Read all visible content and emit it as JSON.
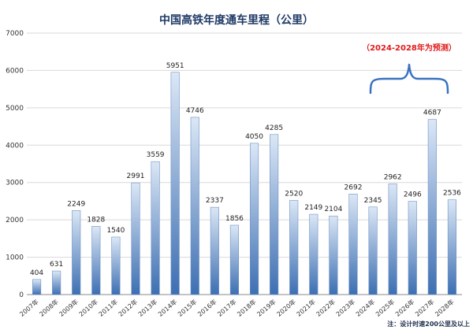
{
  "chart_data": {
    "type": "bar",
    "title": "中国高铁年度通车里程（公里）",
    "categories": [
      "2007年",
      "2008年",
      "2009年",
      "2010年",
      "2011年",
      "2012年",
      "2013年",
      "2014年",
      "2015年",
      "2016年",
      "2017年",
      "2018年",
      "2019年",
      "2020年",
      "2021年",
      "2022年",
      "2023年",
      "2024年",
      "2025年",
      "2026年",
      "2027年",
      "2028年"
    ],
    "values": [
      404,
      631,
      2249,
      1828,
      1540,
      2991,
      3559,
      5951,
      4746,
      2337,
      1856,
      4050,
      4285,
      2520,
      2149,
      2104,
      2692,
      2345,
      2962,
      2496,
      4687,
      2536
    ],
    "y_ticks": [
      "0",
      "1000",
      "2000",
      "3000",
      "4000",
      "5000",
      "6000",
      "7000"
    ],
    "ylim": [
      0,
      7000
    ],
    "grid": true,
    "annotation": "（2024-2028年为预测）",
    "footnote": "注：设计时速200公里及以上",
    "colors": {
      "bar_top": "#dbe7f6",
      "bar_bottom": "#3d6fb2",
      "bar_edge": "#6f93c4",
      "brace": "#3b72c0",
      "annotation": "#e01b1b",
      "grid": "#d9d9d9",
      "axis": "#888888"
    }
  }
}
